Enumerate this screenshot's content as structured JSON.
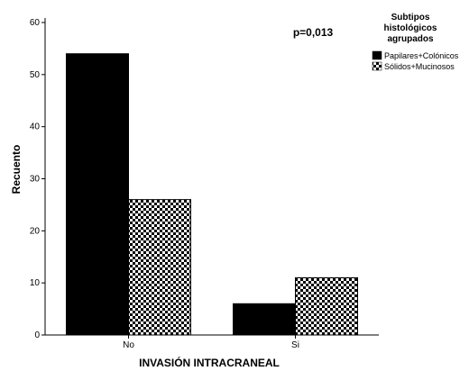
{
  "chart_data": {
    "type": "bar",
    "xlabel": "INVASIÓN INTRACRANEAL",
    "ylabel": "Recuento",
    "categories": [
      "No",
      "Si"
    ],
    "ylim": [
      0,
      60
    ],
    "yticks": [
      0,
      10,
      20,
      30,
      40,
      50,
      60
    ],
    "grid": false,
    "annotation": "p=0,013",
    "legend": {
      "title_lines": [
        "Subtipos",
        "histológicos",
        "agrupados"
      ],
      "placement": "top-right"
    },
    "series": [
      {
        "name": "Papilares+Colónicos",
        "values": [
          54,
          6
        ],
        "fill": "solid",
        "color": "#000000"
      },
      {
        "name": "Sólidos+Mucinosos",
        "values": [
          26,
          11
        ],
        "fill": "checkerboard",
        "color": "#000000"
      }
    ]
  }
}
